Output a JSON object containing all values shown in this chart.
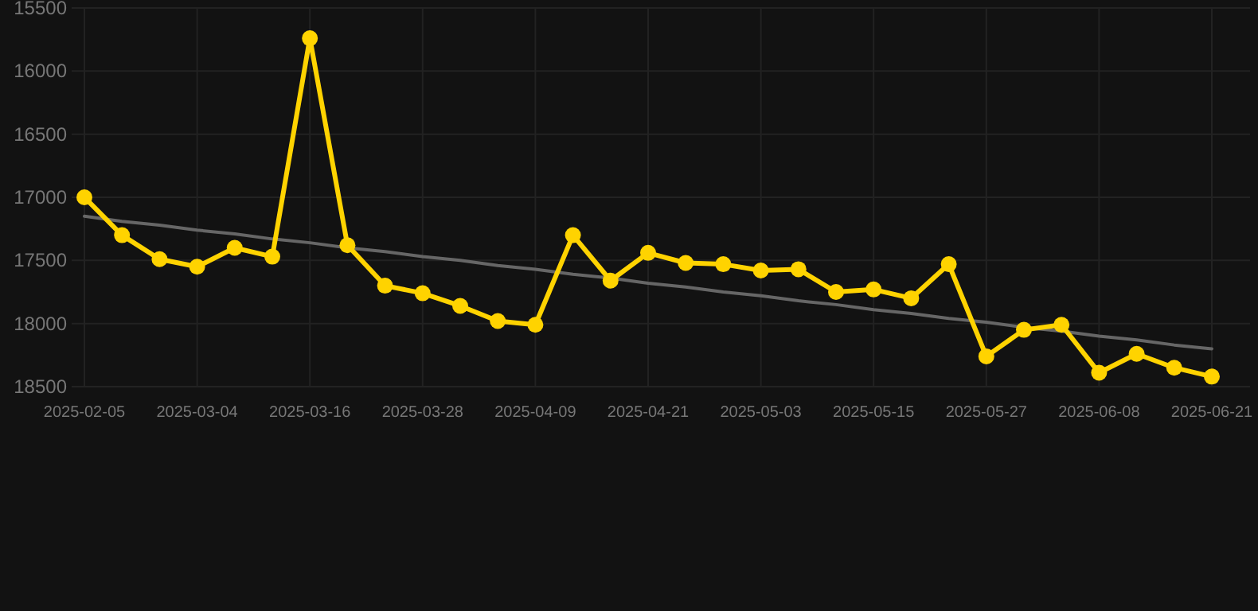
{
  "chart_data": {
    "type": "line",
    "categories": [
      "2025-02-05",
      null,
      null,
      "2025-03-04",
      null,
      null,
      "2025-03-16",
      null,
      null,
      "2025-03-28",
      null,
      null,
      "2025-04-09",
      null,
      null,
      "2025-04-21",
      null,
      null,
      "2025-05-03",
      null,
      null,
      "2025-05-15",
      null,
      null,
      "2025-05-27",
      null,
      null,
      "2025-06-08",
      null,
      null,
      "2025-06-21"
    ],
    "series": [
      {
        "color": "#ffd300",
        "marker": "circle",
        "values": [
          17000,
          17300,
          17490,
          17550,
          17400,
          17470,
          15740,
          17380,
          17700,
          17760,
          17860,
          17980,
          18010,
          17300,
          17660,
          17440,
          17520,
          17530,
          17580,
          17570,
          17750,
          17730,
          17800,
          17530,
          18260,
          18050,
          18010,
          18390,
          18240,
          18350,
          18420
        ]
      },
      {
        "type": "line",
        "color": "#666666",
        "marker": "none",
        "values": [
          17150,
          17190,
          17220,
          17260,
          17290,
          17330,
          17360,
          17400,
          17430,
          17470,
          17500,
          17540,
          17570,
          17610,
          17640,
          17680,
          17710,
          17750,
          17780,
          17820,
          17850,
          17890,
          17920,
          17960,
          17990,
          18030,
          18060,
          18100,
          18130,
          18170,
          18200
        ]
      }
    ],
    "ylim": [
      18500,
      15500
    ],
    "yticks": [
      15500,
      16000,
      16500,
      17000,
      17500,
      18000,
      18500
    ],
    "grid": true
  }
}
